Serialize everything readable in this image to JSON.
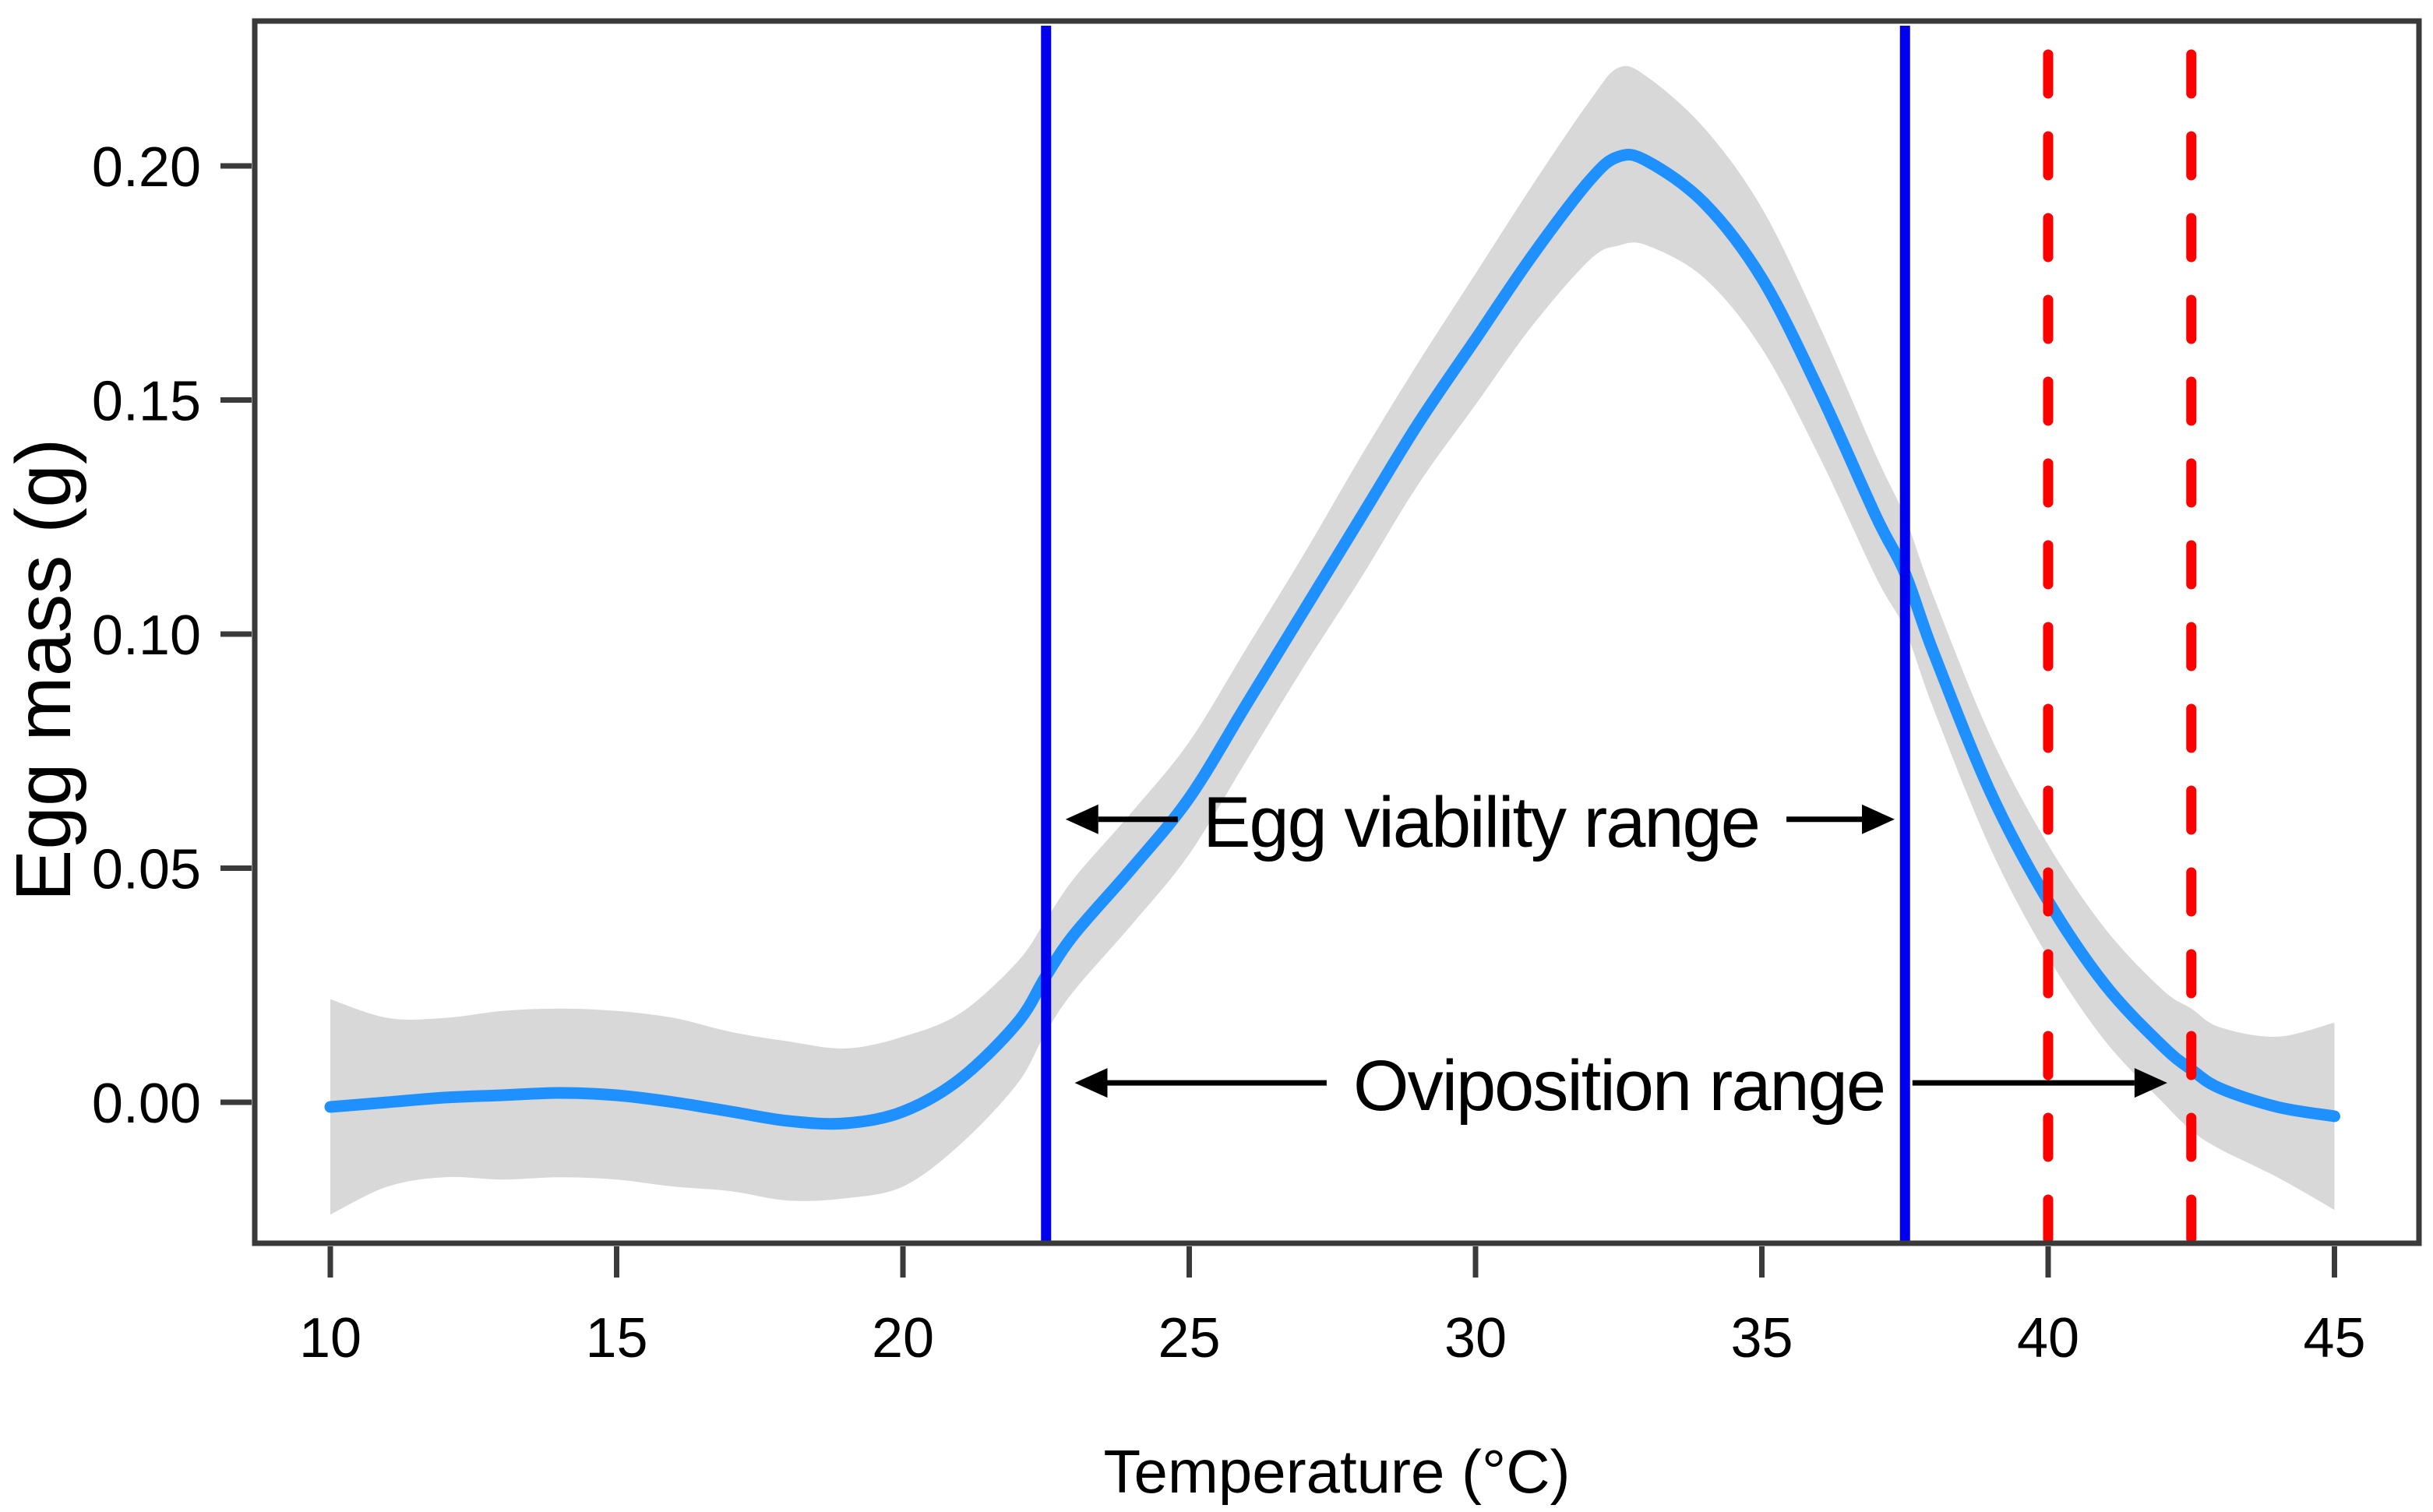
{
  "figure": {
    "background_color": "#ffffff",
    "frame_color": "#3a3a3a",
    "text_color": "#000000"
  },
  "chart_data": {
    "type": "line",
    "title": "",
    "xlabel": "Temperature (°C)",
    "ylabel": "Egg mass (g)",
    "xlim": [
      8.75,
      46.5
    ],
    "ylim": [
      -0.0315,
      0.2315
    ],
    "grid": false,
    "legend": "none",
    "x_ticks": [
      10,
      15,
      20,
      25,
      30,
      35,
      40,
      45
    ],
    "y_ticks": [
      0.0,
      0.05,
      0.1,
      0.15,
      0.2
    ],
    "y_tick_labels": [
      "0.00",
      "0.05",
      "0.10",
      "0.15",
      "0.20"
    ],
    "series": [
      {
        "name": "egg-mass-smooth",
        "color": "#1E90FF",
        "ci_color": "#D8D8D8",
        "x": [
          10,
          11,
          12,
          13,
          14,
          15,
          16,
          17,
          18,
          19,
          20,
          21,
          22,
          22.5,
          23,
          24,
          25,
          26,
          27,
          28,
          29,
          30,
          31,
          32,
          32.5,
          33,
          34,
          35,
          36,
          37,
          37.5,
          38,
          39,
          40,
          41,
          42,
          42.5,
          43,
          44,
          45
        ],
        "y": [
          -0.001,
          0.0,
          0.001,
          0.0015,
          0.002,
          0.0015,
          0.0,
          -0.002,
          -0.004,
          -0.0045,
          -0.002,
          0.005,
          0.017,
          0.027,
          0.036,
          0.05,
          0.065,
          0.085,
          0.105,
          0.125,
          0.145,
          0.163,
          0.181,
          0.197,
          0.202,
          0.201,
          0.192,
          0.176,
          0.152,
          0.125,
          0.113,
          0.096,
          0.066,
          0.043,
          0.025,
          0.012,
          0.007,
          0.003,
          -0.001,
          -0.003
        ],
        "ci_half_width": [
          0.023,
          0.018,
          0.017,
          0.018,
          0.018,
          0.018,
          0.018,
          0.017,
          0.017,
          0.016,
          0.016,
          0.014,
          0.013,
          0.012,
          0.012,
          0.012,
          0.012,
          0.012,
          0.012,
          0.013,
          0.013,
          0.014,
          0.015,
          0.017,
          0.019,
          0.018,
          0.016,
          0.015,
          0.014,
          0.013,
          0.012,
          0.012,
          0.012,
          0.012,
          0.012,
          0.012,
          0.013,
          0.013,
          0.015,
          0.02
        ]
      }
    ],
    "curve_peak": {
      "x": 32.5,
      "y": 0.202
    },
    "reference_lines": [
      {
        "id": "egg-viability-lower",
        "x": 22.5,
        "style": "solid",
        "color": "#0000EE"
      },
      {
        "id": "egg-viability-upper",
        "x": 37.5,
        "style": "solid",
        "color": "#0000EE"
      },
      {
        "id": "oviposition-inner",
        "x": 40.0,
        "style": "dashed",
        "color": "#FF0000"
      },
      {
        "id": "oviposition-upper",
        "x": 42.5,
        "style": "dashed",
        "color": "#FF0000"
      }
    ],
    "annotations": [
      {
        "id": "egg-viability",
        "text": "Egg viability range",
        "text_center_t": 30.1,
        "text_v": 0.0601,
        "arrows": [
          {
            "dir": "left",
            "tail_t": 24.8,
            "tip_t": 22.84
          },
          {
            "dir": "right",
            "tail_t": 35.43,
            "tip_t": 37.32
          }
        ]
      },
      {
        "id": "oviposition",
        "text": "Oviposition range",
        "text_center_t": 32.5,
        "text_v": 0.0038,
        "arrows": [
          {
            "dir": "left",
            "tail_t": 27.4,
            "tip_t": 23.0
          },
          {
            "dir": "right",
            "tail_t": 37.63,
            "tip_t": 42.08
          }
        ]
      }
    ]
  }
}
